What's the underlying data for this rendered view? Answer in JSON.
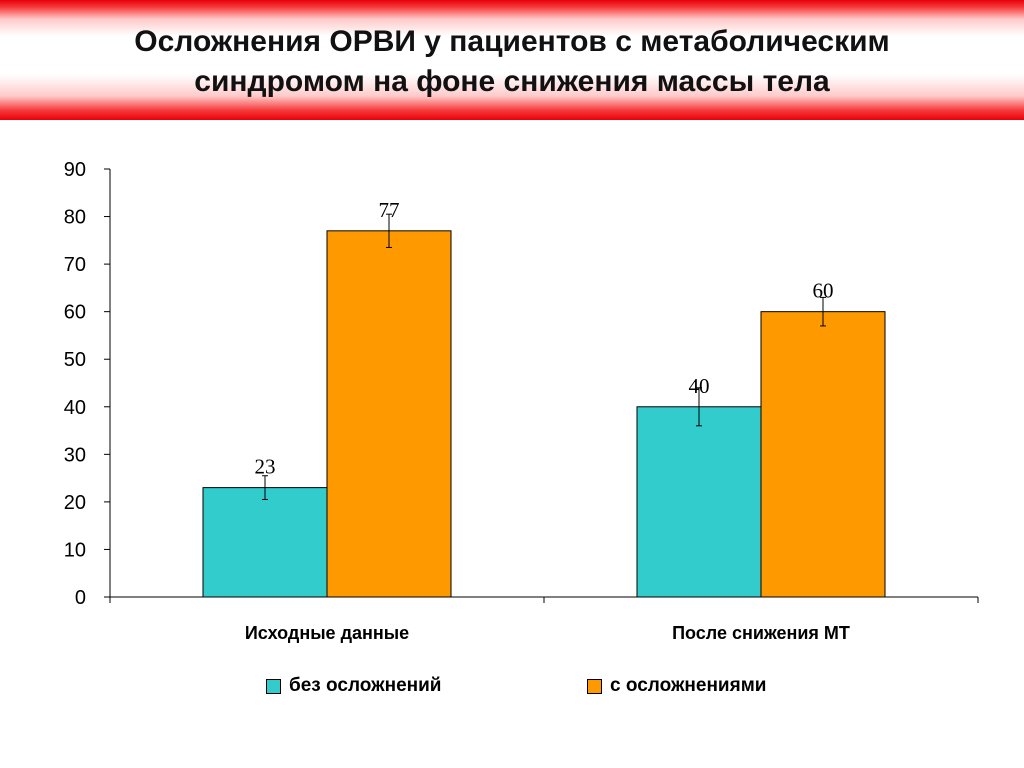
{
  "title_lines": [
    "Осложнения ОРВИ у пациентов с метаболическим",
    "синдромом на фоне снижения массы тела"
  ],
  "chart_data": {
    "type": "bar",
    "title": "Осложнения ОРВИ у пациентов с метаболическим синдромом на фоне снижения массы тела",
    "categories": [
      "Исходные данные",
      "После снижения МТ"
    ],
    "series": [
      {
        "name": "без осложнений",
        "values": [
          23,
          40
        ],
        "error": [
          2.5,
          4
        ],
        "color": "#33cccc"
      },
      {
        "name": "с осложнениями",
        "values": [
          77,
          60
        ],
        "error": [
          3.5,
          3
        ],
        "color": "#ff9900"
      }
    ],
    "data_labels": [
      [
        "23",
        "40"
      ],
      [
        "77",
        "60"
      ]
    ],
    "ylim": [
      0,
      90
    ],
    "yticks": [
      "0",
      "10",
      "20",
      "30",
      "40",
      "50",
      "60",
      "70",
      "80",
      "90"
    ],
    "xlabel": "",
    "ylabel": "",
    "grid": false,
    "legend_position": "bottom"
  }
}
